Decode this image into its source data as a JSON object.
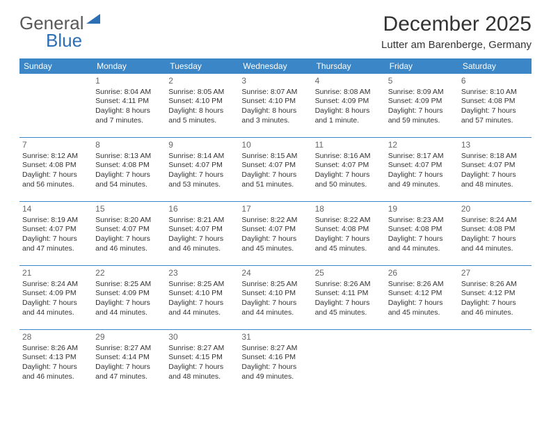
{
  "logo": {
    "word1": "General",
    "word2": "Blue"
  },
  "title": "December 2025",
  "location": "Lutter am Barenberge, Germany",
  "colors": {
    "header_bg": "#3b86c6",
    "header_text": "#ffffff",
    "logo_gray": "#58585a",
    "logo_blue": "#2d6fb5",
    "divider": "#3b86c6",
    "body_text": "#333333",
    "daynum": "#666666",
    "page_bg": "#ffffff"
  },
  "week_days": [
    "Sunday",
    "Monday",
    "Tuesday",
    "Wednesday",
    "Thursday",
    "Friday",
    "Saturday"
  ],
  "weeks": [
    [
      null,
      {
        "n": "1",
        "sunrise": "Sunrise: 8:04 AM",
        "sunset": "Sunset: 4:11 PM",
        "day1": "Daylight: 8 hours",
        "day2": "and 7 minutes."
      },
      {
        "n": "2",
        "sunrise": "Sunrise: 8:05 AM",
        "sunset": "Sunset: 4:10 PM",
        "day1": "Daylight: 8 hours",
        "day2": "and 5 minutes."
      },
      {
        "n": "3",
        "sunrise": "Sunrise: 8:07 AM",
        "sunset": "Sunset: 4:10 PM",
        "day1": "Daylight: 8 hours",
        "day2": "and 3 minutes."
      },
      {
        "n": "4",
        "sunrise": "Sunrise: 8:08 AM",
        "sunset": "Sunset: 4:09 PM",
        "day1": "Daylight: 8 hours",
        "day2": "and 1 minute."
      },
      {
        "n": "5",
        "sunrise": "Sunrise: 8:09 AM",
        "sunset": "Sunset: 4:09 PM",
        "day1": "Daylight: 7 hours",
        "day2": "and 59 minutes."
      },
      {
        "n": "6",
        "sunrise": "Sunrise: 8:10 AM",
        "sunset": "Sunset: 4:08 PM",
        "day1": "Daylight: 7 hours",
        "day2": "and 57 minutes."
      }
    ],
    [
      {
        "n": "7",
        "sunrise": "Sunrise: 8:12 AM",
        "sunset": "Sunset: 4:08 PM",
        "day1": "Daylight: 7 hours",
        "day2": "and 56 minutes."
      },
      {
        "n": "8",
        "sunrise": "Sunrise: 8:13 AM",
        "sunset": "Sunset: 4:08 PM",
        "day1": "Daylight: 7 hours",
        "day2": "and 54 minutes."
      },
      {
        "n": "9",
        "sunrise": "Sunrise: 8:14 AM",
        "sunset": "Sunset: 4:07 PM",
        "day1": "Daylight: 7 hours",
        "day2": "and 53 minutes."
      },
      {
        "n": "10",
        "sunrise": "Sunrise: 8:15 AM",
        "sunset": "Sunset: 4:07 PM",
        "day1": "Daylight: 7 hours",
        "day2": "and 51 minutes."
      },
      {
        "n": "11",
        "sunrise": "Sunrise: 8:16 AM",
        "sunset": "Sunset: 4:07 PM",
        "day1": "Daylight: 7 hours",
        "day2": "and 50 minutes."
      },
      {
        "n": "12",
        "sunrise": "Sunrise: 8:17 AM",
        "sunset": "Sunset: 4:07 PM",
        "day1": "Daylight: 7 hours",
        "day2": "and 49 minutes."
      },
      {
        "n": "13",
        "sunrise": "Sunrise: 8:18 AM",
        "sunset": "Sunset: 4:07 PM",
        "day1": "Daylight: 7 hours",
        "day2": "and 48 minutes."
      }
    ],
    [
      {
        "n": "14",
        "sunrise": "Sunrise: 8:19 AM",
        "sunset": "Sunset: 4:07 PM",
        "day1": "Daylight: 7 hours",
        "day2": "and 47 minutes."
      },
      {
        "n": "15",
        "sunrise": "Sunrise: 8:20 AM",
        "sunset": "Sunset: 4:07 PM",
        "day1": "Daylight: 7 hours",
        "day2": "and 46 minutes."
      },
      {
        "n": "16",
        "sunrise": "Sunrise: 8:21 AM",
        "sunset": "Sunset: 4:07 PM",
        "day1": "Daylight: 7 hours",
        "day2": "and 46 minutes."
      },
      {
        "n": "17",
        "sunrise": "Sunrise: 8:22 AM",
        "sunset": "Sunset: 4:07 PM",
        "day1": "Daylight: 7 hours",
        "day2": "and 45 minutes."
      },
      {
        "n": "18",
        "sunrise": "Sunrise: 8:22 AM",
        "sunset": "Sunset: 4:08 PM",
        "day1": "Daylight: 7 hours",
        "day2": "and 45 minutes."
      },
      {
        "n": "19",
        "sunrise": "Sunrise: 8:23 AM",
        "sunset": "Sunset: 4:08 PM",
        "day1": "Daylight: 7 hours",
        "day2": "and 44 minutes."
      },
      {
        "n": "20",
        "sunrise": "Sunrise: 8:24 AM",
        "sunset": "Sunset: 4:08 PM",
        "day1": "Daylight: 7 hours",
        "day2": "and 44 minutes."
      }
    ],
    [
      {
        "n": "21",
        "sunrise": "Sunrise: 8:24 AM",
        "sunset": "Sunset: 4:09 PM",
        "day1": "Daylight: 7 hours",
        "day2": "and 44 minutes."
      },
      {
        "n": "22",
        "sunrise": "Sunrise: 8:25 AM",
        "sunset": "Sunset: 4:09 PM",
        "day1": "Daylight: 7 hours",
        "day2": "and 44 minutes."
      },
      {
        "n": "23",
        "sunrise": "Sunrise: 8:25 AM",
        "sunset": "Sunset: 4:10 PM",
        "day1": "Daylight: 7 hours",
        "day2": "and 44 minutes."
      },
      {
        "n": "24",
        "sunrise": "Sunrise: 8:25 AM",
        "sunset": "Sunset: 4:10 PM",
        "day1": "Daylight: 7 hours",
        "day2": "and 44 minutes."
      },
      {
        "n": "25",
        "sunrise": "Sunrise: 8:26 AM",
        "sunset": "Sunset: 4:11 PM",
        "day1": "Daylight: 7 hours",
        "day2": "and 45 minutes."
      },
      {
        "n": "26",
        "sunrise": "Sunrise: 8:26 AM",
        "sunset": "Sunset: 4:12 PM",
        "day1": "Daylight: 7 hours",
        "day2": "and 45 minutes."
      },
      {
        "n": "27",
        "sunrise": "Sunrise: 8:26 AM",
        "sunset": "Sunset: 4:12 PM",
        "day1": "Daylight: 7 hours",
        "day2": "and 46 minutes."
      }
    ],
    [
      {
        "n": "28",
        "sunrise": "Sunrise: 8:26 AM",
        "sunset": "Sunset: 4:13 PM",
        "day1": "Daylight: 7 hours",
        "day2": "and 46 minutes."
      },
      {
        "n": "29",
        "sunrise": "Sunrise: 8:27 AM",
        "sunset": "Sunset: 4:14 PM",
        "day1": "Daylight: 7 hours",
        "day2": "and 47 minutes."
      },
      {
        "n": "30",
        "sunrise": "Sunrise: 8:27 AM",
        "sunset": "Sunset: 4:15 PM",
        "day1": "Daylight: 7 hours",
        "day2": "and 48 minutes."
      },
      {
        "n": "31",
        "sunrise": "Sunrise: 8:27 AM",
        "sunset": "Sunset: 4:16 PM",
        "day1": "Daylight: 7 hours",
        "day2": "and 49 minutes."
      },
      null,
      null,
      null
    ]
  ]
}
